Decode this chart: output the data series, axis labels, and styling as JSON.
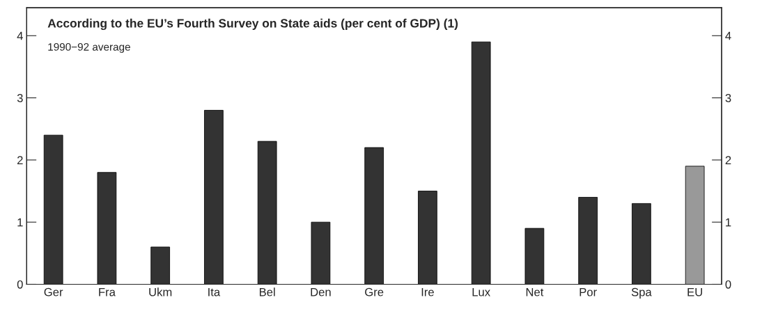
{
  "chart_data": {
    "type": "bar",
    "title": "According to the EU’s Fourth Survey on State aids (per cent of GDP) (1)",
    "subtitle": "1990−92 average",
    "categories": [
      "Ger",
      "Fra",
      "Ukm",
      "Ita",
      "Bel",
      "Den",
      "Gre",
      "Ire",
      "Lux",
      "Net",
      "Por",
      "Spa",
      "EU"
    ],
    "values": [
      2.4,
      1.8,
      0.6,
      2.8,
      2.3,
      1.0,
      2.2,
      1.5,
      3.9,
      0.9,
      1.4,
      1.3,
      1.9
    ],
    "colors": [
      "#333333",
      "#333333",
      "#333333",
      "#333333",
      "#333333",
      "#333333",
      "#333333",
      "#333333",
      "#333333",
      "#333333",
      "#333333",
      "#333333",
      "#999999"
    ],
    "ylim": [
      0,
      4.45
    ],
    "yticks": [
      0,
      1,
      2,
      3,
      4
    ],
    "y2lim": [
      0,
      4.45
    ],
    "y2ticks": [
      0,
      1,
      2,
      3,
      4
    ],
    "grid": false,
    "legend": false
  }
}
